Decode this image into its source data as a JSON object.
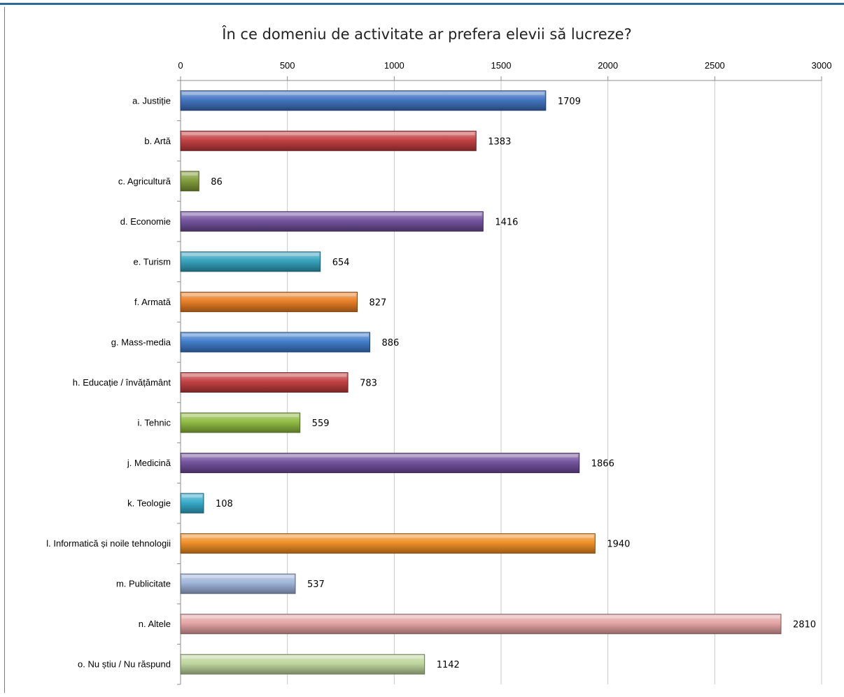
{
  "chart_data": {
    "type": "bar",
    "orientation": "horizontal",
    "title": "În ce domeniu de activitate ar prefera elevii să lucreze?",
    "xlabel": "",
    "ylabel": "",
    "xlim": [
      0,
      3000
    ],
    "x_ticks": [
      0,
      500,
      1000,
      1500,
      2000,
      2500,
      3000
    ],
    "grid": true,
    "legend": "none",
    "categories": [
      "a. Justiție",
      "b. Artă",
      "c. Agricultură",
      "d. Economie",
      "e. Turism",
      "f. Armată",
      "g. Mass-media",
      "h. Educație / învățământ",
      "i. Tehnic",
      "j. Medicină",
      "k. Teologie",
      "l. Informatică și noile tehnologii",
      "m. Publicitate",
      "n. Altele",
      "o. Nu știu / Nu răspund"
    ],
    "values": [
      1709,
      1383,
      86,
      1416,
      654,
      827,
      886,
      783,
      559,
      1866,
      108,
      1940,
      537,
      2810,
      1142
    ],
    "colors": [
      "#3a6fbf",
      "#c0393b",
      "#7e9a35",
      "#6e4c9a",
      "#2f9fbb",
      "#e87a1e",
      "#3a78c9",
      "#c0393b",
      "#8bb83c",
      "#6e4c9a",
      "#2fa8c8",
      "#ef8a1f",
      "#9bb1d8",
      "#e4a0a0",
      "#bcd49a"
    ]
  }
}
